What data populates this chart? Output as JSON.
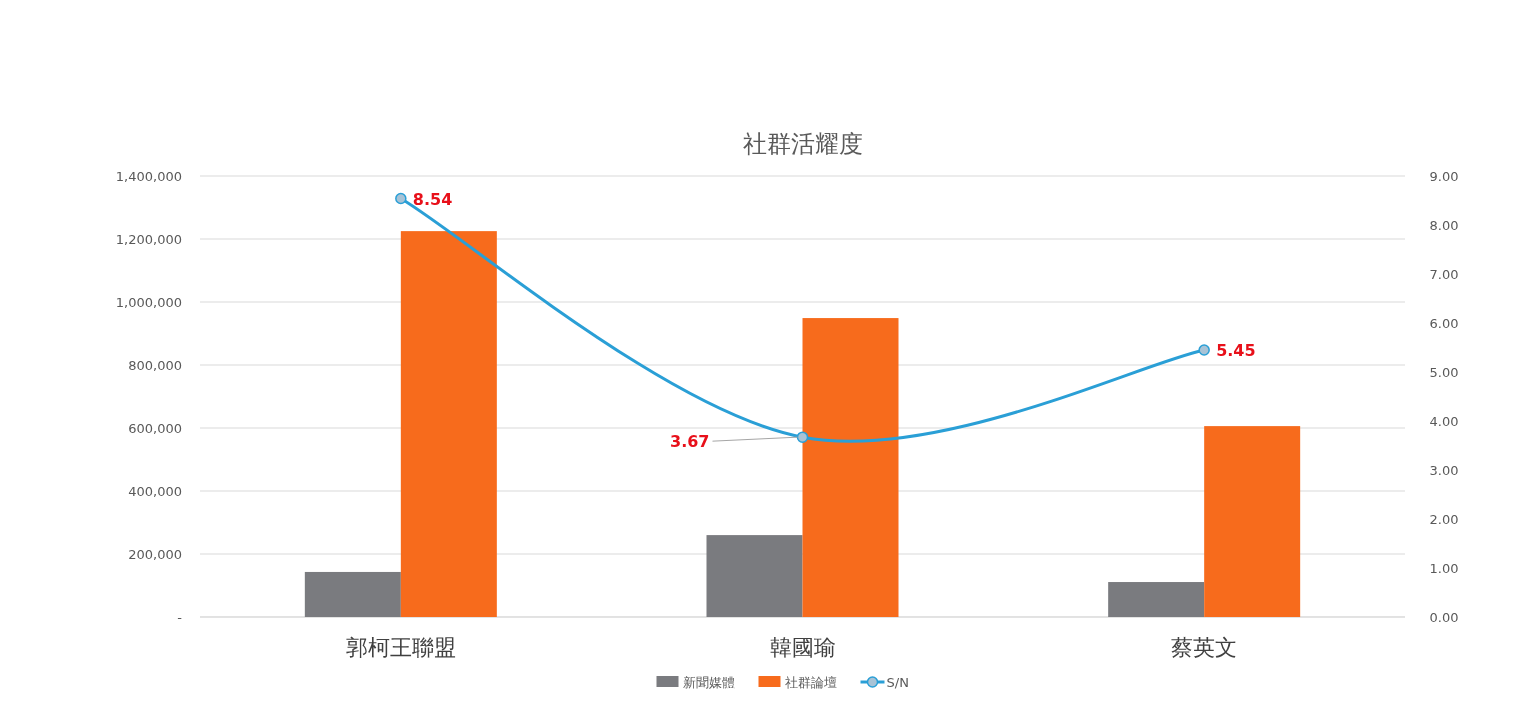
{
  "chart_data": {
    "type": "bar",
    "title": "社群活耀度",
    "categories": [
      "郭柯王聯盟",
      "韓國瑜",
      "蔡英文"
    ],
    "series": [
      {
        "name": "新聞媒體",
        "color": "#7a7b7f",
        "values": [
          143000,
          260000,
          111000
        ]
      },
      {
        "name": "社群論壇",
        "color": "#f76b1c",
        "values": [
          1225000,
          949000,
          606000
        ]
      },
      {
        "name": "S/N",
        "type": "line",
        "axis": "y2",
        "color": "#2a9fd6",
        "marker": "circle",
        "values": [
          8.54,
          3.67,
          5.45
        ],
        "value_labels": [
          "8.54",
          "3.67",
          "5.45"
        ]
      }
    ],
    "ylim": [
      0,
      1400000
    ],
    "yticks": [
      {
        "value": 0,
        "label": "-"
      },
      {
        "value": 200000,
        "label": "200,000"
      },
      {
        "value": 400000,
        "label": "400,000"
      },
      {
        "value": 600000,
        "label": "600,000"
      },
      {
        "value": 800000,
        "label": "800,000"
      },
      {
        "value": 1000000,
        "label": "1,000,000"
      },
      {
        "value": 1200000,
        "label": "1,200,000"
      },
      {
        "value": 1400000,
        "label": "1,400,000"
      }
    ],
    "y2lim": [
      0,
      9
    ],
    "y2ticks": [
      {
        "value": 0,
        "label": "0.00"
      },
      {
        "value": 1,
        "label": "1.00"
      },
      {
        "value": 2,
        "label": "2.00"
      },
      {
        "value": 3,
        "label": "3.00"
      },
      {
        "value": 4,
        "label": "4.00"
      },
      {
        "value": 5,
        "label": "5.00"
      },
      {
        "value": 6,
        "label": "6.00"
      },
      {
        "value": 7,
        "label": "7.00"
      },
      {
        "value": 8,
        "label": "8.00"
      },
      {
        "value": 9,
        "label": "9.00"
      }
    ],
    "grid": "y",
    "legend": "bottom"
  }
}
